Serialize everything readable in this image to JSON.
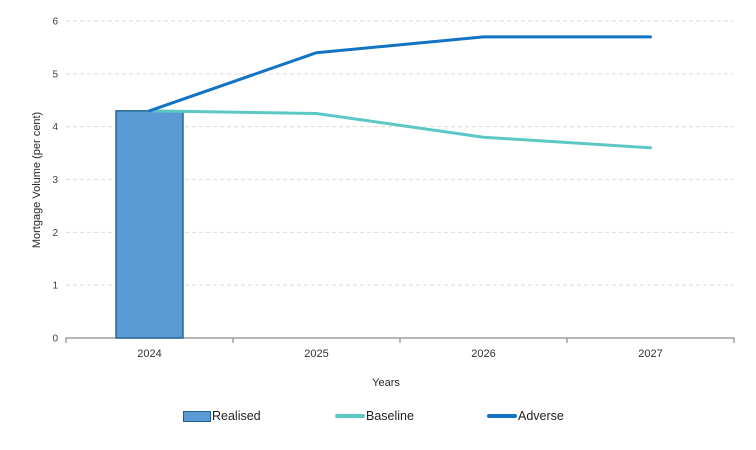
{
  "chart_data": {
    "type": "bar+line combo",
    "title": "",
    "categories": [
      "2024",
      "2025",
      "2026",
      "2027"
    ],
    "series": [
      {
        "name": "Realised",
        "type": "bar",
        "values": [
          4.3,
          null,
          null,
          null
        ],
        "fill": "#5B9BD5",
        "stroke": "#1F618D"
      },
      {
        "name": "Baseline",
        "type": "line",
        "values": [
          4.3,
          4.25,
          3.8,
          3.6
        ],
        "color": "#5BC8C6"
      },
      {
        "name": "Adverse",
        "type": "line",
        "values": [
          4.3,
          5.4,
          5.7,
          5.7
        ],
        "color": "#1373C4"
      }
    ],
    "xlabel": "Years",
    "ylabel": "Mortgage Volume (per cent)",
    "ylim": [
      0,
      6
    ],
    "y_ticks": [
      0,
      1,
      2,
      3,
      4,
      5,
      6
    ],
    "grid": "horizontal-dashed",
    "legend_position": "bottom"
  }
}
